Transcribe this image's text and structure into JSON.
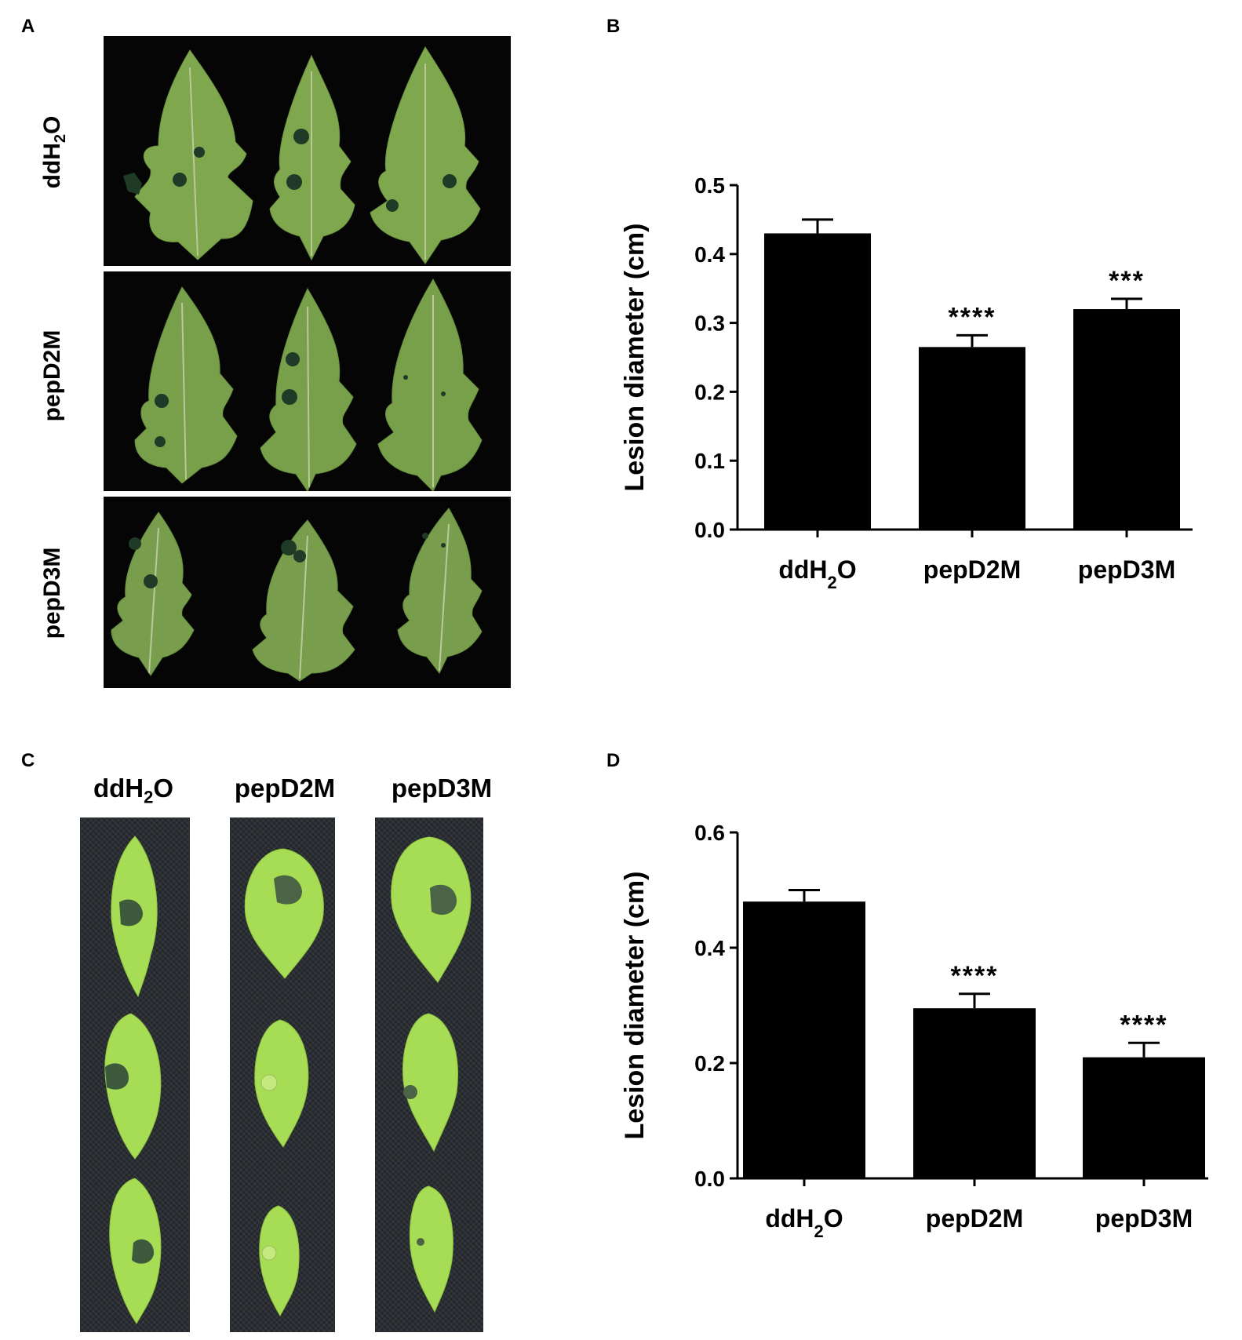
{
  "panels": {
    "A": {
      "letter": "A",
      "rows": [
        {
          "label_main": "ddH",
          "label_sub": "2",
          "label_tail": "O"
        },
        {
          "label_main": "pepD2M",
          "label_sub": "",
          "label_tail": ""
        },
        {
          "label_main": "pepD3M",
          "label_sub": "",
          "label_tail": ""
        }
      ]
    },
    "B": {
      "letter": "B"
    },
    "C": {
      "letter": "C",
      "columns": [
        {
          "label_main": "ddH",
          "label_sub": "2",
          "label_tail": "O"
        },
        {
          "label_main": "pepD2M",
          "label_sub": "",
          "label_tail": ""
        },
        {
          "label_main": "pepD3M",
          "label_sub": "",
          "label_tail": ""
        }
      ]
    },
    "D": {
      "letter": "D"
    }
  },
  "chart_data": [
    {
      "panel": "B",
      "type": "bar",
      "categories": [
        {
          "main": "ddH",
          "sub": "2",
          "tail": "O"
        },
        {
          "main": "pepD2M",
          "sub": "",
          "tail": ""
        },
        {
          "main": "pepD3M",
          "sub": "",
          "tail": ""
        }
      ],
      "values": [
        0.43,
        0.265,
        0.32
      ],
      "errors": [
        0.02,
        0.017,
        0.015
      ],
      "significance": [
        "",
        "****",
        "***"
      ],
      "ylabel": "Lesion diameter (cm)",
      "ylim": [
        0,
        0.5
      ],
      "yticks": [
        "0.0",
        "0.1",
        "0.2",
        "0.3",
        "0.4",
        "0.5"
      ],
      "ytick_values": [
        0,
        0.1,
        0.2,
        0.3,
        0.4,
        0.5
      ],
      "bar_color": "#000000"
    },
    {
      "panel": "D",
      "type": "bar",
      "categories": [
        {
          "main": "ddH",
          "sub": "2",
          "tail": "O"
        },
        {
          "main": "pepD2M",
          "sub": "",
          "tail": ""
        },
        {
          "main": "pepD3M",
          "sub": "",
          "tail": ""
        }
      ],
      "values": [
        0.48,
        0.295,
        0.21
      ],
      "errors": [
        0.02,
        0.025,
        0.025
      ],
      "significance": [
        "",
        "****",
        "****"
      ],
      "ylabel": "Lesion diameter (cm)",
      "ylim": [
        0,
        0.6
      ],
      "yticks": [
        "0.0",
        "0.2",
        "0.4",
        "0.6"
      ],
      "ytick_values": [
        0,
        0.2,
        0.4,
        0.6
      ],
      "bar_color": "#000000"
    }
  ],
  "colors": {
    "leaf_green": "#7fa84e",
    "leaf_vein": "#b9c99a",
    "lesion": "#1f3a26",
    "arabidopsis_leaf": "#a6dd55",
    "background_black": "#050505"
  }
}
